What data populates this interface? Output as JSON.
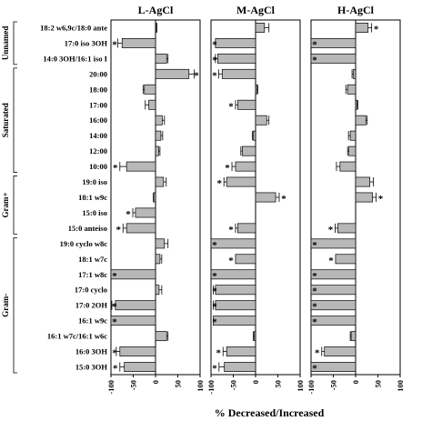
{
  "chart_data": {
    "type": "bar",
    "orientation": "horizontal",
    "xlabel": "% Decreased/Increased",
    "xlim": [
      -100,
      100
    ],
    "xticks": [
      -100,
      -50,
      0,
      50,
      100
    ],
    "tick_labels": [
      "-100",
      "-50",
      "0",
      "50",
      "100"
    ],
    "significance_marker": "*",
    "categories": [
      "18:2 w6,9c/18:0 ante",
      "17:0 iso 3OH",
      "14:0 3OH/16:1 iso I",
      "20:00",
      "18:00",
      "17:00",
      "16:00",
      "14:00",
      "12:00",
      "10:00",
      "19:0 iso",
      "18:1 w9c",
      "15:0 iso",
      "15:0 anteiso",
      "19:0 cyclo w8c",
      "18:1 w7c",
      "17:1 w8c",
      "17:0 cyclo",
      "17:0 2OH",
      "16:1 w9c",
      "16:1 w7c/16:1 w6c",
      "16:0 3OH",
      "15:0 3OH"
    ],
    "groups": [
      {
        "label": "Unnamed",
        "start": 0,
        "end": 2
      },
      {
        "label": "Saturated",
        "start": 3,
        "end": 9
      },
      {
        "label": "Gram+",
        "start": 10,
        "end": 13
      },
      {
        "label": "Gram-",
        "start": 14,
        "end": 22
      }
    ],
    "series": [
      {
        "name": "L-AgCl",
        "values": [
          1,
          -75,
          25,
          75,
          -25,
          -15,
          15,
          12,
          7,
          -65,
          18,
          -4,
          -45,
          -65,
          20,
          10,
          -100,
          8,
          -90,
          -100,
          25,
          -80,
          -70
        ],
        "errors": [
          2,
          10,
          3,
          12,
          3,
          8,
          5,
          4,
          3,
          15,
          6,
          1,
          6,
          8,
          8,
          4,
          0,
          6,
          8,
          0,
          3,
          8,
          10
        ],
        "significant": [
          false,
          true,
          false,
          true,
          false,
          false,
          false,
          false,
          false,
          true,
          false,
          false,
          true,
          true,
          false,
          false,
          true,
          false,
          true,
          true,
          false,
          true,
          true
        ]
      },
      {
        "name": "M-AgCl",
        "values": [
          20,
          -90,
          -85,
          -75,
          3,
          -40,
          25,
          -5,
          -30,
          -45,
          -65,
          45,
          0,
          -40,
          -100,
          -45,
          -100,
          -90,
          -90,
          -95,
          -3,
          -65,
          -70
        ],
        "errors": [
          10,
          0,
          5,
          8,
          2,
          5,
          5,
          2,
          3,
          8,
          6,
          8,
          0,
          5,
          0,
          0,
          0,
          5,
          5,
          0,
          2,
          8,
          12
        ],
        "significant": [
          false,
          true,
          true,
          true,
          false,
          true,
          false,
          false,
          false,
          true,
          true,
          true,
          false,
          true,
          true,
          true,
          true,
          true,
          true,
          true,
          false,
          true,
          true
        ]
      },
      {
        "name": "H-AgCl",
        "values": [
          28,
          -100,
          -100,
          -5,
          -18,
          3,
          23,
          -12,
          -15,
          -35,
          32,
          38,
          0,
          -40,
          -100,
          -45,
          -100,
          -100,
          -100,
          -100,
          -10,
          -70,
          -100
        ],
        "errors": [
          8,
          0,
          0,
          3,
          4,
          2,
          3,
          4,
          3,
          8,
          8,
          8,
          0,
          6,
          0,
          0,
          0,
          0,
          0,
          0,
          2,
          6,
          0
        ],
        "significant": [
          true,
          true,
          true,
          false,
          false,
          false,
          false,
          false,
          false,
          false,
          false,
          true,
          false,
          true,
          true,
          true,
          true,
          true,
          true,
          true,
          false,
          true,
          true
        ]
      }
    ]
  }
}
